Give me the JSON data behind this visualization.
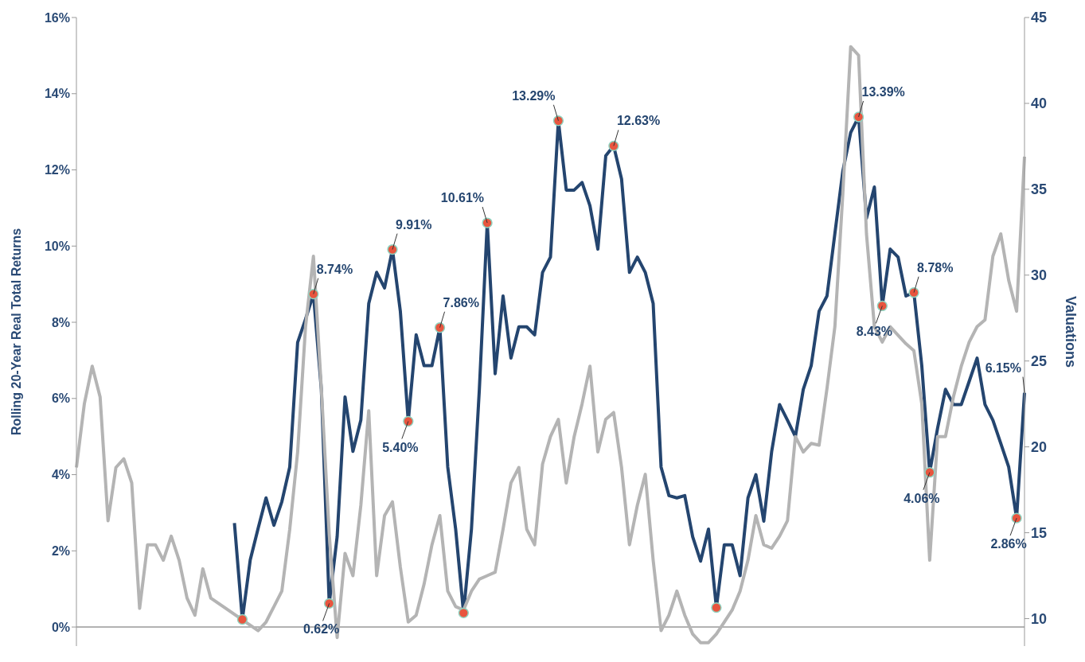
{
  "chart_data": {
    "type": "line",
    "ylabel": "Rolling 20-Year Real Total Returns",
    "y2label": "Valuations",
    "categories": [
      null,
      null,
      null,
      null,
      null,
      null,
      null,
      null,
      null,
      null,
      null,
      null,
      null,
      null,
      null,
      null,
      null,
      null,
      null,
      null,
      null,
      null,
      null,
      null,
      null,
      null,
      null,
      null,
      null,
      null,
      null,
      null,
      null,
      null,
      null,
      null,
      null,
      null,
      null,
      null,
      null,
      null,
      null,
      null,
      null,
      null,
      null,
      null,
      null,
      null,
      null,
      null,
      null,
      null,
      null,
      null,
      null,
      null,
      null,
      null,
      null,
      null,
      null,
      null,
      null,
      null,
      null,
      null,
      null,
      null,
      null,
      null,
      null,
      null,
      null,
      null,
      null,
      null,
      null,
      null,
      null,
      null,
      null,
      null,
      null,
      null,
      null,
      null,
      null,
      null,
      null,
      null,
      null,
      null,
      null,
      null,
      null,
      null,
      null,
      null,
      null,
      null,
      null,
      null,
      null,
      null,
      null,
      null,
      null,
      null,
      null,
      null,
      null,
      null,
      null,
      null,
      null,
      null,
      null,
      null,
      null
    ],
    "series": [
      {
        "color": "#24456f",
        "values": [
          null,
          null,
          null,
          null,
          null,
          null,
          null,
          null,
          null,
          null,
          null,
          null,
          null,
          null,
          null,
          null,
          null,
          null,
          null,
          null,
          2.73,
          0.2,
          1.76,
          2.59,
          3.39,
          2.67,
          3.29,
          4.2,
          7.47,
          8.08,
          8.74,
          6.24,
          0.62,
          2.37,
          6.04,
          4.61,
          5.43,
          8.49,
          9.31,
          8.9,
          9.91,
          8.29,
          5.4,
          7.67,
          6.86,
          6.86,
          7.86,
          4.2,
          2.57,
          0.37,
          2.57,
          6.24,
          10.61,
          6.65,
          8.69,
          7.06,
          7.88,
          7.88,
          7.67,
          9.31,
          9.71,
          13.29,
          11.47,
          11.47,
          11.67,
          11.06,
          9.92,
          12.37,
          12.63,
          11.76,
          9.31,
          9.71,
          9.31,
          8.49,
          4.2,
          3.45,
          3.39,
          3.45,
          2.37,
          1.73,
          2.57,
          0.51,
          2.16,
          2.16,
          1.35,
          3.39,
          4.0,
          2.78,
          4.61,
          5.84,
          5.43,
          5.0,
          6.24,
          6.86,
          8.29,
          8.69,
          10.33,
          11.96,
          12.98,
          13.39,
          10.73,
          11.55,
          8.43,
          9.92,
          9.71,
          8.69,
          8.78,
          6.86,
          4.06,
          5.22,
          6.24,
          5.84,
          5.84,
          6.45,
          7.06,
          5.84,
          5.43,
          4.82,
          4.2,
          2.86,
          6.15
        ],
        "value_labels": [
          null,
          null,
          null,
          null,
          null,
          null,
          null,
          null,
          null,
          null,
          null,
          null,
          null,
          null,
          null,
          null,
          null,
          null,
          null,
          null,
          null,
          null,
          null,
          null,
          null,
          null,
          null,
          null,
          null,
          null,
          "8.74%",
          null,
          "0.62%",
          null,
          null,
          null,
          null,
          null,
          null,
          null,
          "9.91%",
          null,
          "5.40%",
          null,
          null,
          null,
          "7.86%",
          null,
          null,
          null,
          null,
          null,
          "10.61%",
          null,
          null,
          null,
          null,
          null,
          null,
          null,
          null,
          "13.29%",
          null,
          null,
          null,
          null,
          null,
          null,
          "12.63%",
          null,
          null,
          null,
          null,
          null,
          null,
          null,
          null,
          null,
          null,
          null,
          null,
          null,
          null,
          null,
          null,
          null,
          null,
          null,
          null,
          null,
          null,
          null,
          null,
          null,
          null,
          null,
          null,
          null,
          null,
          "13.39%",
          null,
          null,
          "8.43%",
          null,
          null,
          null,
          "8.78%",
          null,
          "4.06%",
          null,
          null,
          null,
          null,
          null,
          null,
          null,
          null,
          null,
          null,
          "2.86%",
          "6.15%"
        ]
      },
      {
        "axis": "y2",
        "color": "#b4b4b4",
        "values": [
          18.8,
          22.5,
          24.7,
          22.9,
          15.7,
          18.8,
          19.3,
          17.9,
          10.6,
          14.3,
          14.3,
          13.4,
          14.8,
          13.4,
          11.2,
          10.2,
          12.9,
          11.2,
          null,
          null,
          null,
          null,
          null,
          9.3,
          9.8,
          10.7,
          11.6,
          15.2,
          19.7,
          27.0,
          31.1,
          23.4,
          14.9,
          8.9,
          13.8,
          12.5,
          16.6,
          22.1,
          12.5,
          16.0,
          16.8,
          13.0,
          9.8,
          10.2,
          12.0,
          14.3,
          16.0,
          11.6,
          10.7,
          10.5,
          11.6,
          12.3,
          12.5,
          12.7,
          15.2,
          17.9,
          18.8,
          15.2,
          14.3,
          19.0,
          20.6,
          21.6,
          17.9,
          20.6,
          22.5,
          24.7,
          19.7,
          21.6,
          22.0,
          18.8,
          14.3,
          16.6,
          18.4,
          13.4,
          9.3,
          10.2,
          11.6,
          10.2,
          9.1,
          8.6,
          8.6,
          9.1,
          9.8,
          10.5,
          11.6,
          13.4,
          16.0,
          14.3,
          14.1,
          14.8,
          15.7,
          20.6,
          19.7,
          20.2,
          20.1,
          23.4,
          27.0,
          34.7,
          43.3,
          42.8,
          32.4,
          27.0,
          26.1,
          27.0,
          26.5,
          26.0,
          25.6,
          22.5,
          13.4,
          20.6,
          20.6,
          22.9,
          24.7,
          26.1,
          27.0,
          27.4,
          31.1,
          32.4,
          29.7,
          27.9,
          36.9
        ]
      },
      {
        "type": "scatter",
        "color": "#e8553f",
        "marker": "circle",
        "values": [
          null,
          null,
          null,
          null,
          null,
          null,
          null,
          null,
          null,
          null,
          null,
          null,
          null,
          null,
          null,
          null,
          null,
          null,
          null,
          null,
          null,
          0.2,
          null,
          null,
          null,
          null,
          null,
          null,
          null,
          null,
          8.74,
          null,
          0.62,
          null,
          null,
          null,
          null,
          null,
          null,
          null,
          9.91,
          null,
          5.4,
          null,
          null,
          null,
          7.86,
          null,
          null,
          0.37,
          null,
          null,
          10.61,
          null,
          null,
          null,
          null,
          null,
          null,
          null,
          null,
          13.29,
          null,
          null,
          null,
          null,
          null,
          null,
          12.63,
          null,
          null,
          null,
          null,
          null,
          null,
          null,
          null,
          null,
          null,
          null,
          null,
          0.51,
          null,
          null,
          null,
          null,
          null,
          null,
          null,
          null,
          null,
          null,
          null,
          null,
          null,
          null,
          null,
          null,
          null,
          13.39,
          null,
          null,
          8.43,
          null,
          null,
          null,
          8.78,
          null,
          4.06,
          null,
          null,
          null,
          null,
          null,
          null,
          null,
          null,
          null,
          null,
          2.86,
          null
        ]
      }
    ],
    "ylim": [
      -0.5,
      16
    ],
    "yticks": [
      {
        "value": 0,
        "label": "0%"
      },
      {
        "value": 2,
        "label": "2%"
      },
      {
        "value": 4,
        "label": "4%"
      },
      {
        "value": 6,
        "label": "6%"
      },
      {
        "value": 8,
        "label": "8%"
      },
      {
        "value": 10,
        "label": "10%"
      },
      {
        "value": 12,
        "label": "12%"
      },
      {
        "value": 14,
        "label": "14%"
      },
      {
        "value": 16,
        "label": "16%"
      }
    ],
    "y2lim": [
      8.4,
      45
    ],
    "y2ticks": [
      10,
      15,
      20,
      25,
      30,
      35,
      40,
      45
    ],
    "ref_lines": [
      {
        "axis": "y",
        "value": 0,
        "color": "#999999"
      }
    ],
    "tick_labels": "y",
    "grid": false,
    "legend": false,
    "line_style": "solid"
  }
}
